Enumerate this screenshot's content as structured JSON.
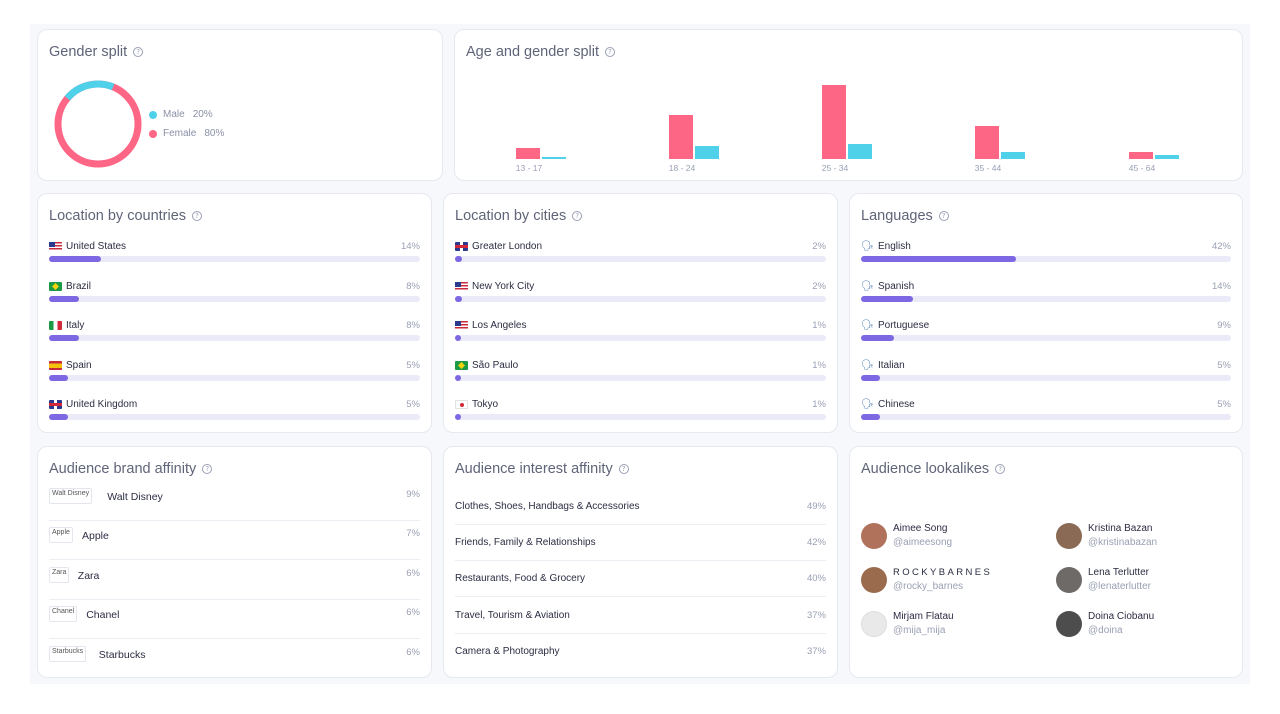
{
  "gender": {
    "title": "Gender split",
    "help_icon": "question-circle-icon",
    "items": [
      {
        "label": "Male",
        "value": "20%",
        "share": 0.2,
        "color": "#4fd1ea"
      },
      {
        "label": "Female",
        "value": "80%",
        "share": 0.8,
        "color": "#fe6685"
      }
    ]
  },
  "age": {
    "title": "Age and gender split",
    "female_color": "#fe6685",
    "male_color": "#4fd1ea",
    "groups": [
      {
        "label": "13 - 17",
        "female": 0.06,
        "male": 0.01
      },
      {
        "label": "18 - 24",
        "female": 0.24,
        "male": 0.07
      },
      {
        "label": "25 - 34",
        "female": 0.4,
        "male": 0.08
      },
      {
        "label": "35 - 44",
        "female": 0.18,
        "male": 0.04
      },
      {
        "label": "45 - 64",
        "female": 0.04,
        "male": 0.02
      }
    ]
  },
  "countries": {
    "title": "Location by countries",
    "items": [
      {
        "label": "United States",
        "value": "14%",
        "share": 0.14,
        "flag": "us"
      },
      {
        "label": "Brazil",
        "value": "8%",
        "share": 0.08,
        "flag": "br"
      },
      {
        "label": "Italy",
        "value": "8%",
        "share": 0.08,
        "flag": "it"
      },
      {
        "label": "Spain",
        "value": "5%",
        "share": 0.05,
        "flag": "es"
      },
      {
        "label": "United Kingdom",
        "value": "5%",
        "share": 0.05,
        "flag": "gb"
      }
    ]
  },
  "cities": {
    "title": "Location by cities",
    "items": [
      {
        "label": "Greater London",
        "value": "2%",
        "share": 0.02,
        "flag": "gb"
      },
      {
        "label": "New York City",
        "value": "2%",
        "share": 0.02,
        "flag": "us"
      },
      {
        "label": "Los Angeles",
        "value": "1%",
        "share": 0.01,
        "flag": "us"
      },
      {
        "label": "São Paulo",
        "value": "1%",
        "share": 0.01,
        "flag": "br"
      },
      {
        "label": "Tokyo",
        "value": "1%",
        "share": 0.01,
        "flag": "jp"
      }
    ]
  },
  "languages": {
    "title": "Languages",
    "icon": "speaking-head-icon",
    "items": [
      {
        "label": "English",
        "value": "42%",
        "share": 0.42
      },
      {
        "label": "Spanish",
        "value": "14%",
        "share": 0.14
      },
      {
        "label": "Portuguese",
        "value": "9%",
        "share": 0.09
      },
      {
        "label": "Italian",
        "value": "5%",
        "share": 0.05
      },
      {
        "label": "Chinese",
        "value": "5%",
        "share": 0.05
      }
    ]
  },
  "brands": {
    "title": "Audience brand affinity",
    "items": [
      {
        "logo_alt": "Walt Disney",
        "label": "Walt Disney",
        "value": "9%"
      },
      {
        "logo_alt": "Apple",
        "label": "Apple",
        "value": "7%"
      },
      {
        "logo_alt": "Zara",
        "label": "Zara",
        "value": "6%"
      },
      {
        "logo_alt": "Chanel",
        "label": "Chanel",
        "value": "6%"
      },
      {
        "logo_alt": "Starbucks",
        "label": "Starbucks",
        "value": "6%"
      }
    ]
  },
  "interests": {
    "title": "Audience interest affinity",
    "items": [
      {
        "label": "Clothes, Shoes, Handbags & Accessories",
        "value": "49%"
      },
      {
        "label": "Friends, Family & Relationships",
        "value": "42%"
      },
      {
        "label": "Restaurants, Food & Grocery",
        "value": "40%"
      },
      {
        "label": "Travel, Tourism & Aviation",
        "value": "37%"
      },
      {
        "label": "Camera & Photography",
        "value": "37%"
      }
    ]
  },
  "lookalikes": {
    "title": "Audience lookalikes",
    "people": [
      {
        "name": "Aimee Song",
        "handle": "@aimeesong",
        "avatar_color": "#b0725a"
      },
      {
        "name": "Kristina Bazan",
        "handle": "@kristinabazan",
        "avatar_color": "#8a6a55"
      },
      {
        "name": "R O C K Y B A R N E S",
        "handle": "@rocky_barnes",
        "avatar_color": "#9b6b4e"
      },
      {
        "name": "Lena Terlutter",
        "handle": "@lenaterlutter",
        "avatar_color": "#6d6a68"
      },
      {
        "name": "Mirjam Flatau",
        "handle": "@mija_mija",
        "avatar_color": "#e9e9e9"
      },
      {
        "name": "Doina Ciobanu",
        "handle": "@doina",
        "avatar_color": "#4d4d4d"
      }
    ]
  }
}
